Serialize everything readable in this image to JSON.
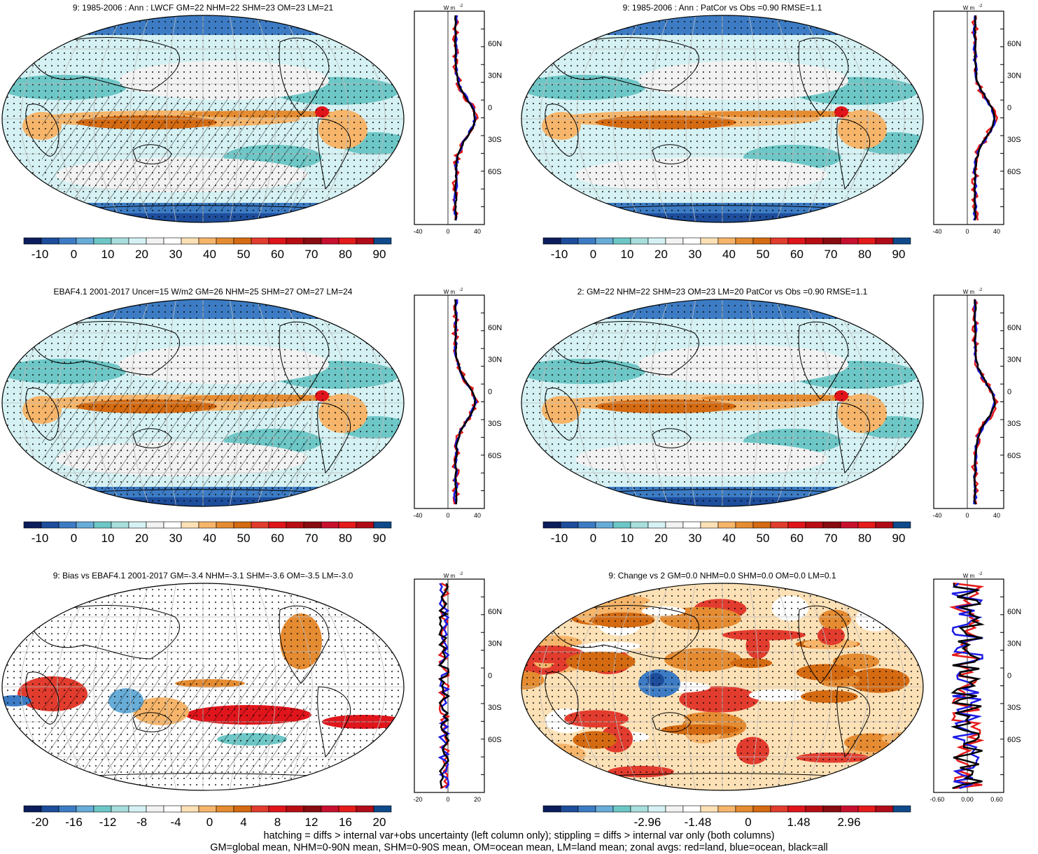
{
  "panels": [
    {
      "title": "9: 1985-2006 : Ann : LWCF GM=22 NHM=22 SHM=23 OM=23 LM=21",
      "colorbar_labels": [
        "-10",
        "0",
        "10",
        "20",
        "30",
        "40",
        "50",
        "60",
        "70",
        "80",
        "90"
      ],
      "zonal_xticks": [
        "-40",
        "0",
        "40"
      ],
      "overlay": "hatch-stipple",
      "palette": "abs"
    },
    {
      "title": "9: 1985-2006 : Ann : PatCor vs Obs =0.90 RMSE=1.1",
      "colorbar_labels": [
        "-10",
        "0",
        "10",
        "20",
        "30",
        "40",
        "50",
        "60",
        "70",
        "80",
        "90"
      ],
      "zonal_xticks": [
        "-40",
        "0",
        "40"
      ],
      "overlay": "stipple",
      "palette": "abs"
    },
    {
      "title": "EBAF4.1 2001-2017 Uncer=15 W/m2 GM=26 NHM=25 SHM=27 OM=27 LM=24",
      "colorbar_labels": [
        "-10",
        "0",
        "10",
        "20",
        "30",
        "40",
        "50",
        "60",
        "70",
        "80",
        "90"
      ],
      "zonal_xticks": [
        "-40",
        "0",
        "40"
      ],
      "overlay": "hatch-stipple",
      "palette": "abs"
    },
    {
      "title": "2: GM=22 NHM=22 SHM=23 OM=23 LM=20 PatCor vs Obs =0.90 RMSE=1.1",
      "colorbar_labels": [
        "-10",
        "0",
        "10",
        "20",
        "30",
        "40",
        "50",
        "60",
        "70",
        "80",
        "90"
      ],
      "zonal_xticks": [
        "-40",
        "0",
        "40"
      ],
      "overlay": "stipple",
      "palette": "abs"
    },
    {
      "title": "9: Bias vs EBAF4.1 2001-2017 GM=-3.4 NHM=-3.1 SHM=-3.6 OM=-3.5 LM=-3.0",
      "colorbar_labels": [
        "-20",
        "-16",
        "-12",
        "-8",
        "-4",
        "0",
        "4",
        "8",
        "12",
        "16",
        "20"
      ],
      "zonal_xticks": [
        "-20",
        "0",
        "20"
      ],
      "overlay": "hatch-stipple",
      "palette": "bias"
    },
    {
      "title": "9: Change vs 2 GM=0.0 NHM=0.0 SHM=0.0 OM=0.0 LM=0.1",
      "colorbar_labels": [
        "-2.96",
        "-1.48",
        "0",
        "1.48",
        "2.96"
      ],
      "zonal_xticks": [
        "-0.60",
        "0.00",
        "0.60"
      ],
      "overlay": "stipple",
      "palette": "change"
    }
  ],
  "zonal_units": "W m",
  "zonal_units_exp": "-2",
  "lat_labels": [
    "60N",
    "30N",
    "0",
    "30S",
    "60S"
  ],
  "colors": {
    "abs_palette": [
      "#0b1d5c",
      "#1d4d9b",
      "#3d7cc4",
      "#68acd8",
      "#6dc7c7",
      "#a8dedc",
      "#d5f1f3",
      "#f2f2f2",
      "#ffffff",
      "#fde1b6",
      "#f6b56a",
      "#e58b31",
      "#d46a11",
      "#e23c2e",
      "#e0151b",
      "#b80d13",
      "#880c10",
      "#c8102e",
      "#e51a1a",
      "#b00b18",
      "#0f4a8a"
    ],
    "bias_palette": [
      "#0b1d5c",
      "#1d4d9b",
      "#3d7cc4",
      "#68acd8",
      "#6dc7c7",
      "#a8dedc",
      "#d5f1f3",
      "#f2f2f2",
      "#ffffff",
      "#fde1b6",
      "#f6b56a",
      "#e58b31",
      "#d46a11",
      "#e23c2e",
      "#e0151b",
      "#b80d13",
      "#880c10",
      "#c8102e",
      "#e51a1a",
      "#b00b18",
      "#0f4a8a"
    ],
    "land_line": "#e51a1a",
    "ocean_line": "#1a1ae6",
    "all_line": "#000000"
  },
  "footer": {
    "line1": "hatching = diffs > internal var+obs uncertainty (left column only); stippling = diffs > internal var only (both columns)",
    "line2": "GM=global mean, NHM=0-90N mean, SHM=0-90S mean, OM=ocean mean, LM=land mean; zonal avgs: red=land, blue=ocean, black=all"
  }
}
